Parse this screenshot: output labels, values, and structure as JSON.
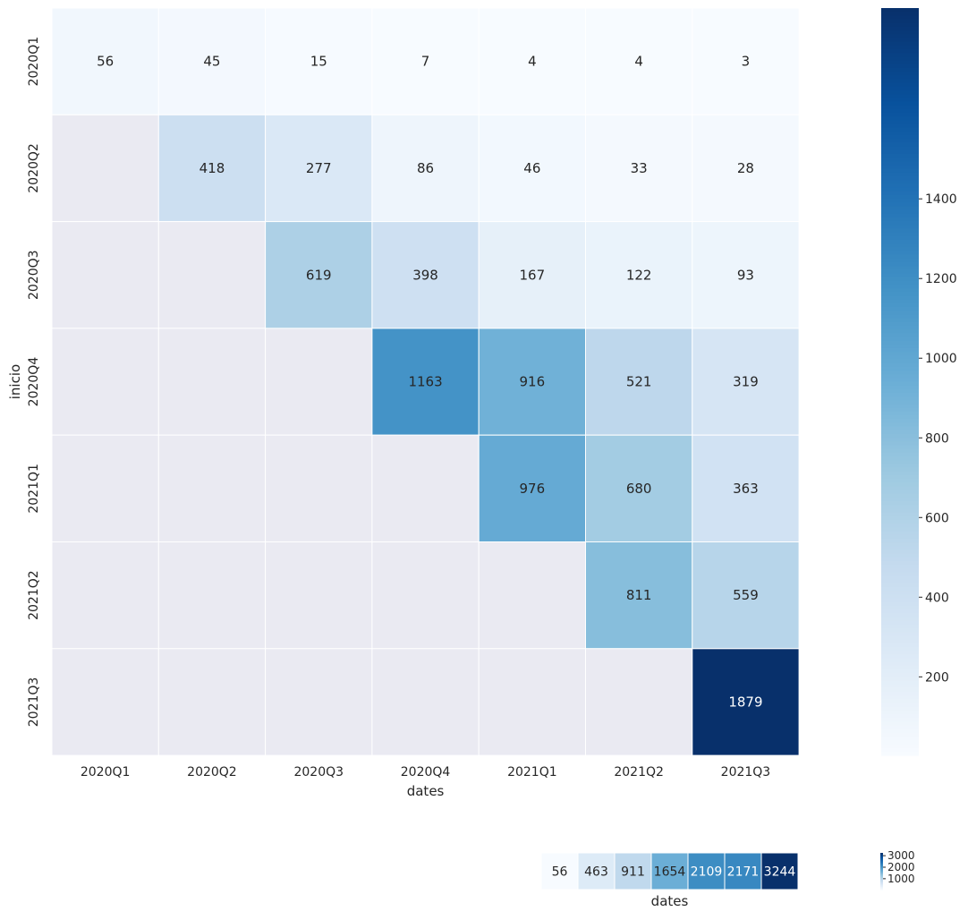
{
  "chart_data": [
    {
      "type": "heatmap",
      "xlabel": "dates",
      "ylabel": "inicio",
      "x_categories": [
        "2020Q1",
        "2020Q2",
        "2020Q3",
        "2020Q4",
        "2021Q1",
        "2021Q2",
        "2021Q3"
      ],
      "y_categories": [
        "2020Q1",
        "2020Q2",
        "2020Q3",
        "2020Q4",
        "2021Q1",
        "2021Q2",
        "2021Q3"
      ],
      "values": [
        [
          56,
          45,
          15,
          7,
          4,
          4,
          3
        ],
        [
          null,
          418,
          277,
          86,
          46,
          33,
          28
        ],
        [
          null,
          null,
          619,
          398,
          167,
          122,
          93
        ],
        [
          null,
          null,
          null,
          1163,
          916,
          521,
          319
        ],
        [
          null,
          null,
          null,
          null,
          976,
          680,
          363
        ],
        [
          null,
          null,
          null,
          null,
          null,
          811,
          559
        ],
        [
          null,
          null,
          null,
          null,
          null,
          null,
          1879
        ]
      ],
      "colormap": "Blues",
      "missing_color": "#eaeaf2",
      "colorbar": {
        "range": [
          3,
          1879
        ],
        "ticks": [
          200,
          400,
          600,
          800,
          1000,
          1200,
          1400
        ]
      }
    },
    {
      "type": "heatmap",
      "xlabel": "dates",
      "values": [
        56,
        463,
        911,
        1654,
        2109,
        2171,
        3244
      ],
      "colormap": "Blues",
      "colorbar": {
        "range": [
          56,
          3244
        ],
        "ticks": [
          1000,
          2000,
          3000
        ]
      }
    }
  ]
}
